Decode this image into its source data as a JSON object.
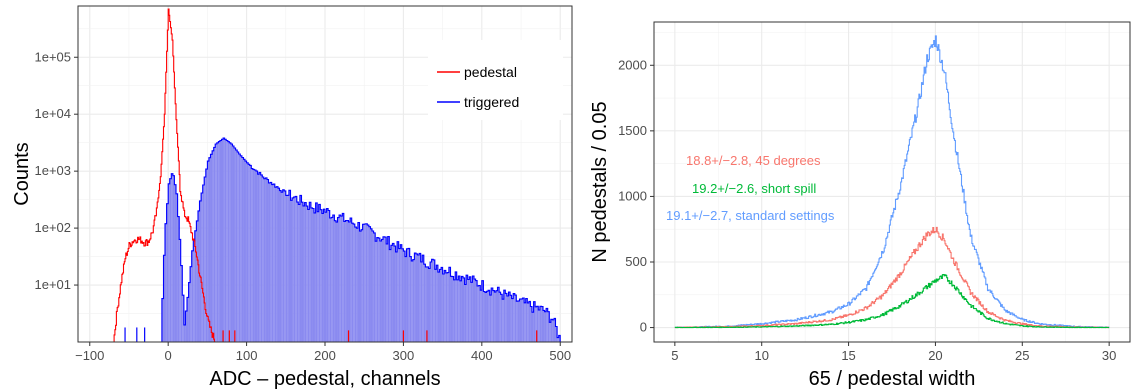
{
  "chart_data": [
    {
      "type": "histogram",
      "xlabel": "ADC – pedestal,  channels",
      "ylabel": "Counts",
      "xlim": [
        -115,
        515
      ],
      "ylim_log10": [
        0,
        5.9
      ],
      "yscale": "log",
      "grid": true,
      "legend_position": "top-right",
      "x_ticks": [
        -100,
        0,
        100,
        200,
        300,
        400,
        500
      ],
      "x_tick_labels": [
        "−100",
        "0",
        "100",
        "200",
        "300",
        "400",
        "500"
      ],
      "y_ticks": [
        10,
        100,
        1000,
        10000,
        100000
      ],
      "y_tick_labels": [
        "1e+01",
        "1e+02",
        "1e+03",
        "1e+04",
        "1e+05"
      ],
      "legend": [
        {
          "label": "pedestal",
          "color": "#ff0000"
        },
        {
          "label": "triggered",
          "color": "#0000ff"
        }
      ],
      "series": [
        {
          "name": "pedestal",
          "color": "#ff0000",
          "points": [
            [
              -70,
              1
            ],
            [
              -65,
              4
            ],
            [
              -60,
              12
            ],
            [
              -55,
              30
            ],
            [
              -50,
              50
            ],
            [
              -45,
              60
            ],
            [
              -40,
              65
            ],
            [
              -35,
              62
            ],
            [
              -30,
              55
            ],
            [
              -25,
              60
            ],
            [
              -20,
              90
            ],
            [
              -15,
              200
            ],
            [
              -10,
              800
            ],
            [
              -5,
              10000
            ],
            [
              0,
              700000
            ],
            [
              5,
              200000
            ],
            [
              10,
              8000
            ],
            [
              15,
              500
            ],
            [
              20,
              180
            ],
            [
              25,
              140
            ],
            [
              30,
              80
            ],
            [
              35,
              40
            ],
            [
              40,
              15
            ],
            [
              45,
              6
            ],
            [
              50,
              2.5
            ],
            [
              55,
              1.5
            ],
            [
              60,
              1
            ]
          ]
        },
        {
          "name": "triggered",
          "color": "#0000ff",
          "fill": "#8a8af0",
          "points": [
            [
              -10,
              1
            ],
            [
              -5,
              80
            ],
            [
              0,
              600
            ],
            [
              5,
              1000
            ],
            [
              10,
              400
            ],
            [
              15,
              40
            ],
            [
              20,
              2
            ],
            [
              25,
              8
            ],
            [
              30,
              40
            ],
            [
              40,
              300
            ],
            [
              50,
              1500
            ],
            [
              60,
              3000
            ],
            [
              70,
              3800
            ],
            [
              80,
              3000
            ],
            [
              90,
              2000
            ],
            [
              100,
              1400
            ],
            [
              120,
              800
            ],
            [
              150,
              400
            ],
            [
              180,
              250
            ],
            [
              200,
              200
            ],
            [
              250,
              100
            ],
            [
              300,
              40
            ],
            [
              350,
              20
            ],
            [
              400,
              10
            ],
            [
              450,
              5
            ],
            [
              480,
              3.5
            ],
            [
              490,
              2.5
            ],
            [
              500,
              1
            ]
          ]
        }
      ]
    },
    {
      "type": "histogram",
      "xlabel": "65 / pedestal width",
      "ylabel": "N pedestals / 0.05",
      "xlim": [
        3.8,
        31.2
      ],
      "ylim": [
        -110,
        2330
      ],
      "grid": true,
      "x_ticks": [
        5,
        10,
        15,
        20,
        25,
        30
      ],
      "y_ticks": [
        0,
        500,
        1000,
        1500,
        2000
      ],
      "annotations": [
        {
          "text": "18.8+/−2.8,  45 degrees",
          "color": "#f8766d"
        },
        {
          "text": "19.2+/−2.6,  short spill",
          "color": "#00ba38"
        },
        {
          "text": "19.1+/−2.7,  standard settings",
          "color": "#619cff"
        }
      ],
      "series": [
        {
          "name": "19.1+/−2.7,  standard settings",
          "color": "#619cff",
          "points": [
            [
              5,
              2
            ],
            [
              8,
              10
            ],
            [
              10,
              30
            ],
            [
              12,
              60
            ],
            [
              14,
              120
            ],
            [
              15,
              180
            ],
            [
              16,
              300
            ],
            [
              17,
              600
            ],
            [
              18,
              1100
            ],
            [
              19,
              1700
            ],
            [
              19.5,
              2050
            ],
            [
              20,
              2200
            ],
            [
              20.5,
              1950
            ],
            [
              21,
              1500
            ],
            [
              22,
              700
            ],
            [
              23,
              300
            ],
            [
              24,
              130
            ],
            [
              25,
              60
            ],
            [
              26,
              28
            ],
            [
              28,
              8
            ],
            [
              30,
              2
            ]
          ]
        },
        {
          "name": "18.8+/−2.8,  45 degrees",
          "color": "#f8766d",
          "points": [
            [
              5,
              1
            ],
            [
              8,
              6
            ],
            [
              10,
              15
            ],
            [
              12,
              30
            ],
            [
              14,
              60
            ],
            [
              15,
              95
            ],
            [
              16,
              150
            ],
            [
              17,
              250
            ],
            [
              18,
              420
            ],
            [
              19,
              620
            ],
            [
              19.5,
              710
            ],
            [
              20,
              750
            ],
            [
              20.5,
              670
            ],
            [
              21,
              520
            ],
            [
              22,
              270
            ],
            [
              23,
              120
            ],
            [
              24,
              55
            ],
            [
              25,
              28
            ],
            [
              26,
              12
            ],
            [
              28,
              4
            ],
            [
              30,
              1
            ]
          ]
        },
        {
          "name": "19.2+/−2.6,  short spill",
          "color": "#00ba38",
          "points": [
            [
              5,
              0
            ],
            [
              8,
              2
            ],
            [
              10,
              5
            ],
            [
              12,
              12
            ],
            [
              14,
              25
            ],
            [
              15,
              40
            ],
            [
              16,
              60
            ],
            [
              17,
              100
            ],
            [
              18,
              170
            ],
            [
              19,
              260
            ],
            [
              19.5,
              310
            ],
            [
              20,
              360
            ],
            [
              20.5,
              390
            ],
            [
              21,
              330
            ],
            [
              22,
              170
            ],
            [
              23,
              70
            ],
            [
              24,
              30
            ],
            [
              25,
              12
            ],
            [
              26,
              5
            ],
            [
              28,
              1
            ],
            [
              30,
              0
            ]
          ]
        }
      ]
    }
  ]
}
